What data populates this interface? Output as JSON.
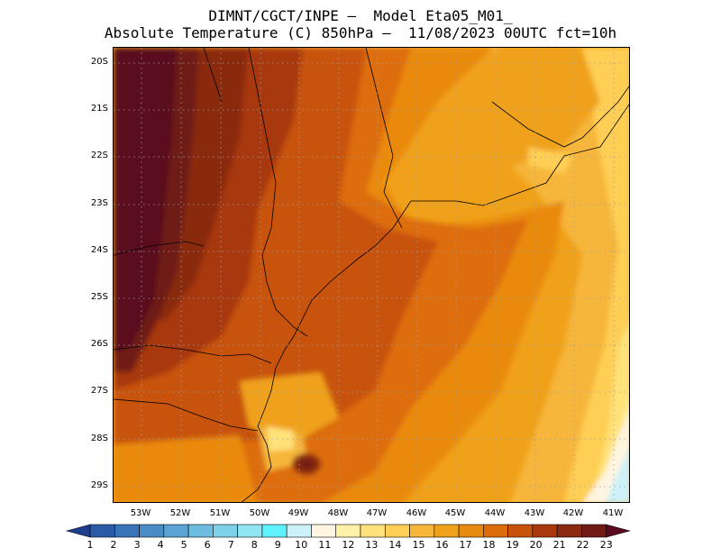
{
  "title": {
    "line1": "DIMNT/CGCT/INPE –  Model Eta05_M01_",
    "line2": "Absolute Temperature (C) 850hPa –  11/08/2023 00UTC fct=10h"
  },
  "axes": {
    "lat_labels": [
      "20S",
      "21S",
      "22S",
      "23S",
      "24S",
      "25S",
      "26S",
      "27S",
      "28S",
      "29S"
    ],
    "lon_labels": [
      "53W",
      "52W",
      "51W",
      "50W",
      "49W",
      "48W",
      "47W",
      "46W",
      "45W",
      "44W",
      "43W",
      "42W",
      "41W"
    ]
  },
  "legend": {
    "labels": [
      "1",
      "2",
      "3",
      "4",
      "5",
      "6",
      "7",
      "8",
      "9",
      "10",
      "11",
      "12",
      "13",
      "14",
      "15",
      "16",
      "17",
      "18",
      "19",
      "20",
      "21",
      "22",
      "23"
    ],
    "colors": [
      "#1f3d8f",
      "#2c5aa6",
      "#3a74b8",
      "#4a8cc6",
      "#5aa3d2",
      "#6dbcdf",
      "#7fd1ea",
      "#8fe6f2",
      "#5ef2ff",
      "#cdf1f8",
      "#fff5e0",
      "#fff2a8",
      "#ffe27a",
      "#ffcf55",
      "#f6b63a",
      "#f0a11a",
      "#e98a10",
      "#dd6d0a",
      "#c8520a",
      "#a8390c",
      "#8a2a10",
      "#701a16",
      "#5a0a1e"
    ],
    "unit": "C"
  },
  "map": {
    "extent": {
      "west": "53.5W",
      "east": "40.7W",
      "north": "19.7S",
      "south": "29.4S"
    },
    "grid": "dotted"
  }
}
